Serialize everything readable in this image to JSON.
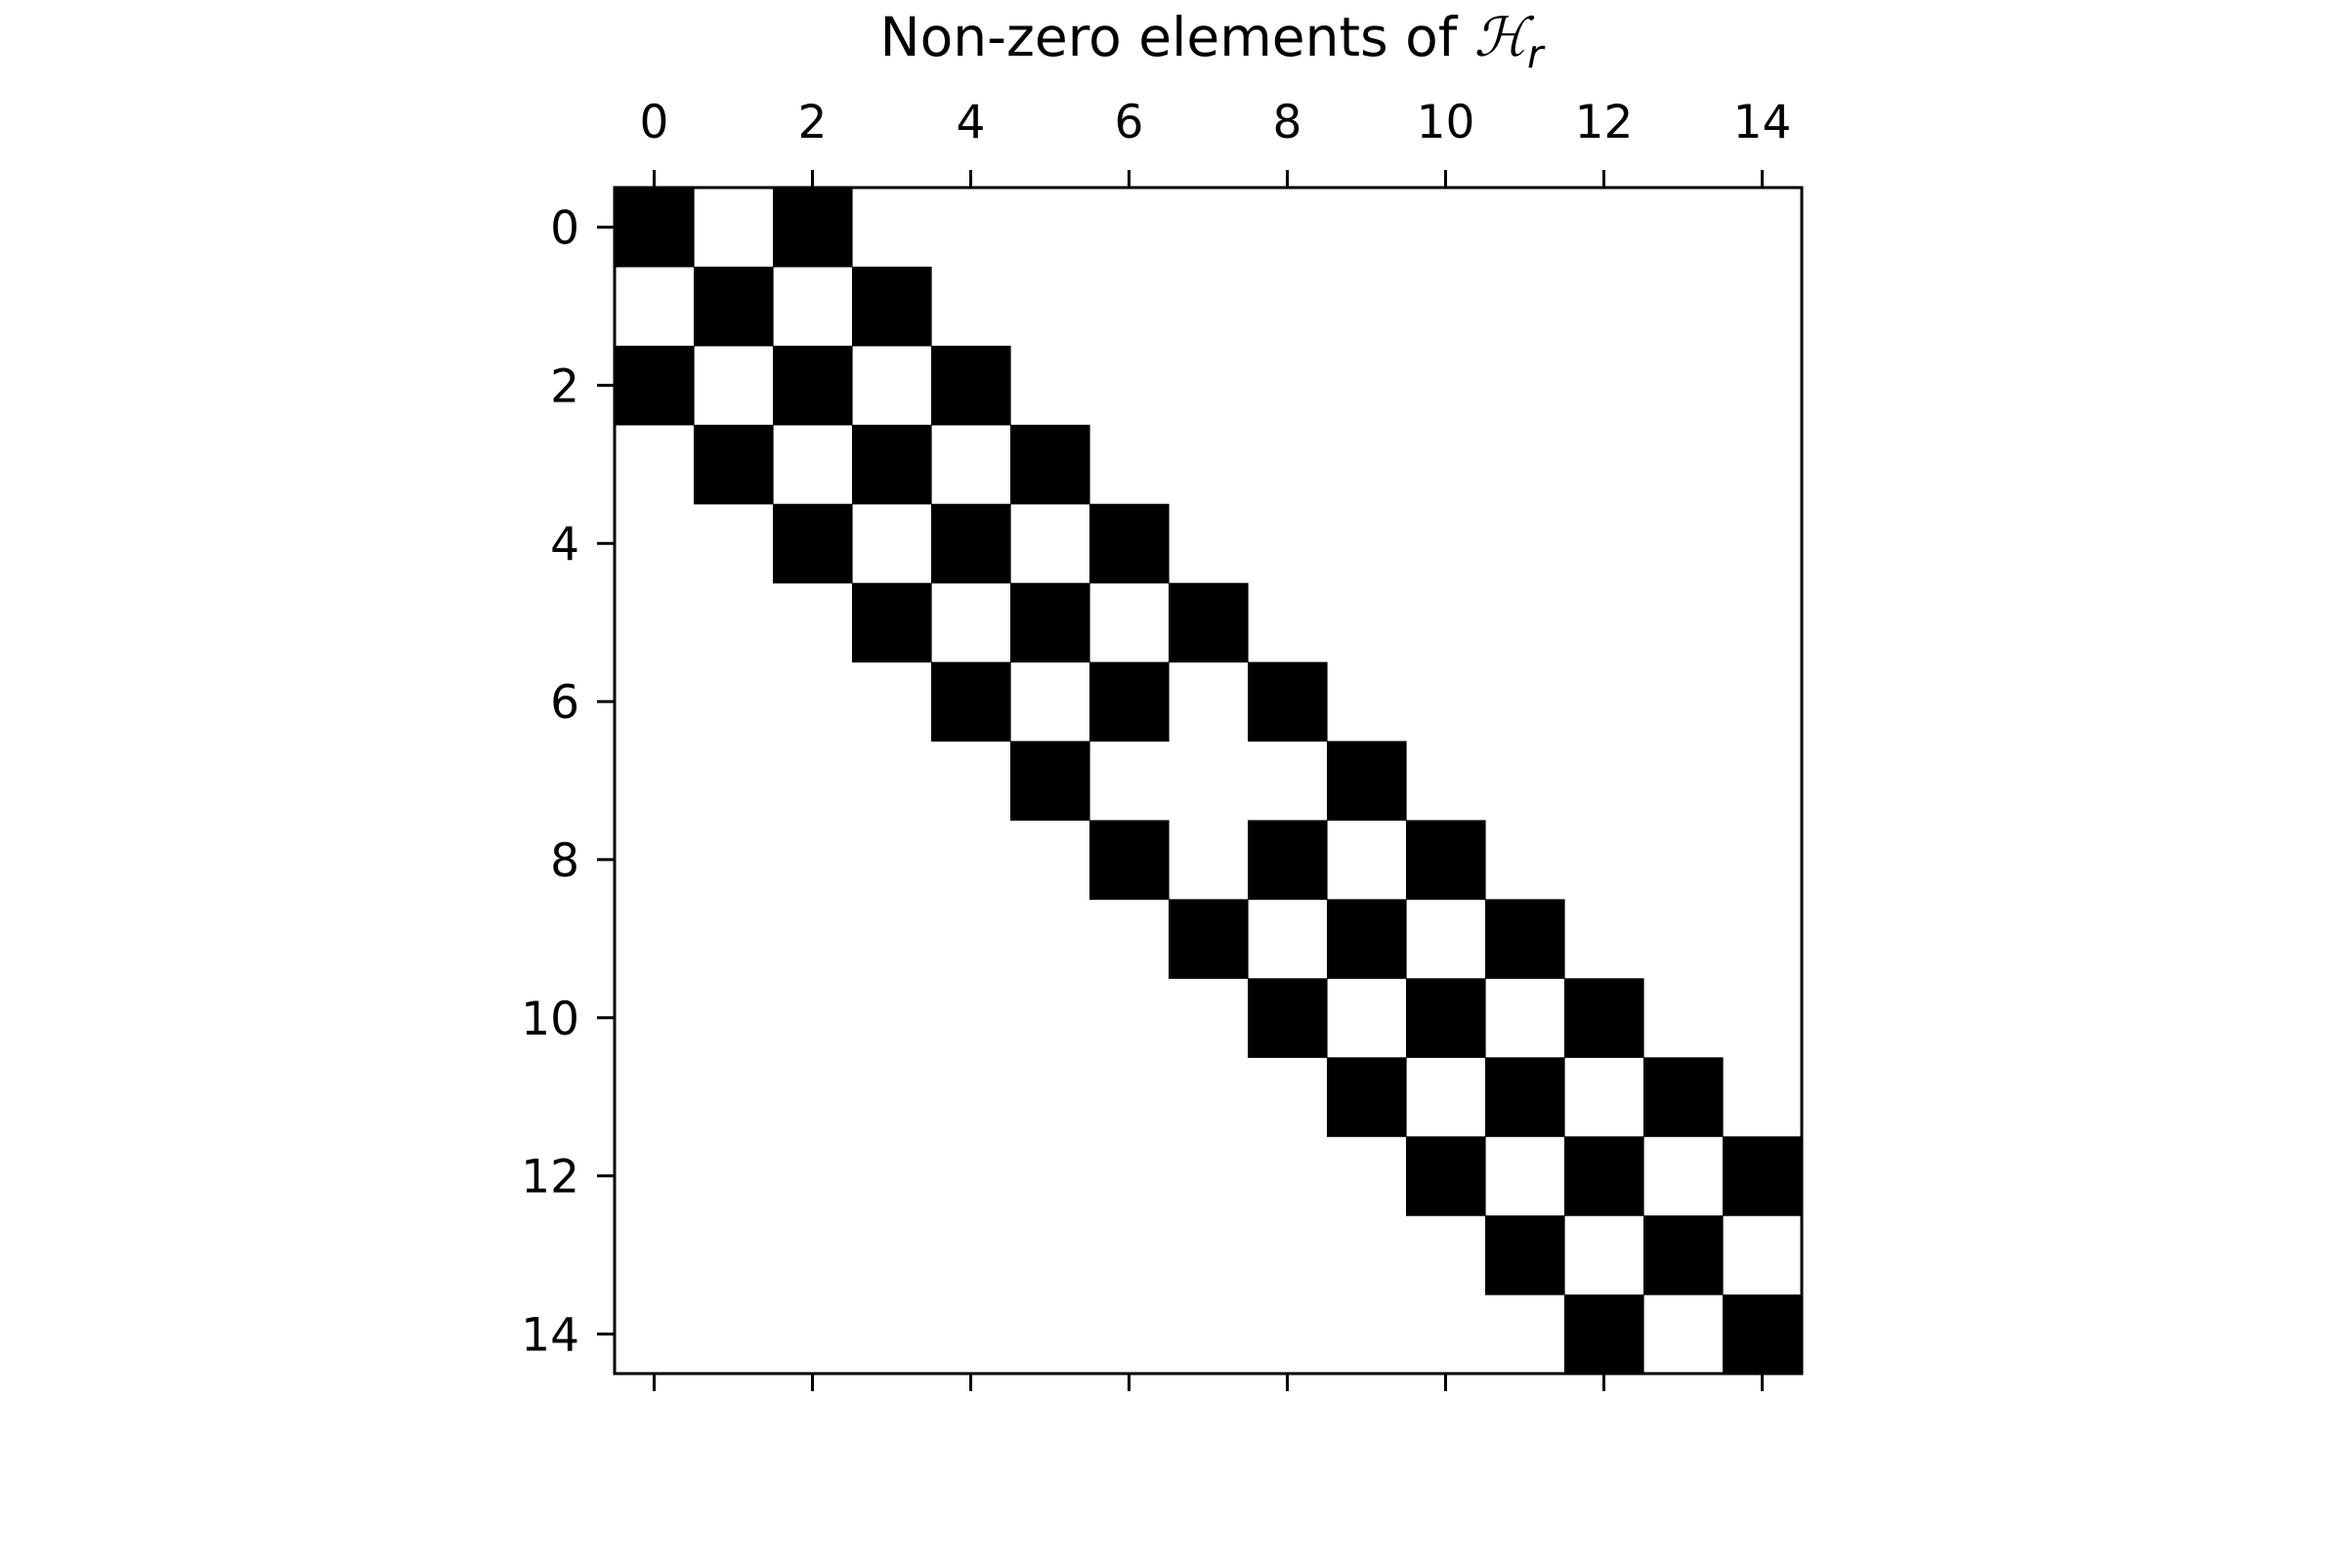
{
  "chart_data": {
    "type": "heatmap",
    "title": {
      "prefix": "Non-zero elements of ",
      "symbol": "ℋ",
      "subscript": "r"
    },
    "rows": 15,
    "cols": 15,
    "xticks": [
      "0",
      "2",
      "4",
      "6",
      "8",
      "10",
      "12",
      "14"
    ],
    "yticks": [
      "0",
      "2",
      "4",
      "6",
      "8",
      "10",
      "12",
      "14"
    ],
    "xtick_values": [
      0,
      2,
      4,
      6,
      8,
      10,
      12,
      14
    ],
    "ytick_values": [
      0,
      2,
      4,
      6,
      8,
      10,
      12,
      14
    ],
    "xaxis_position": "top",
    "grid": false,
    "colors": {
      "nonzero": "#000000",
      "zero": "#ffffff"
    },
    "nonzero": [
      [
        0,
        0
      ],
      [
        0,
        2
      ],
      [
        1,
        1
      ],
      [
        1,
        3
      ],
      [
        2,
        0
      ],
      [
        2,
        2
      ],
      [
        2,
        4
      ],
      [
        3,
        1
      ],
      [
        3,
        3
      ],
      [
        3,
        5
      ],
      [
        4,
        2
      ],
      [
        4,
        4
      ],
      [
        4,
        6
      ],
      [
        5,
        3
      ],
      [
        5,
        5
      ],
      [
        5,
        7
      ],
      [
        6,
        4
      ],
      [
        6,
        6
      ],
      [
        6,
        8
      ],
      [
        7,
        5
      ],
      [
        7,
        9
      ],
      [
        8,
        6
      ],
      [
        8,
        8
      ],
      [
        8,
        10
      ],
      [
        9,
        7
      ],
      [
        9,
        9
      ],
      [
        9,
        11
      ],
      [
        10,
        8
      ],
      [
        10,
        10
      ],
      [
        10,
        12
      ],
      [
        11,
        9
      ],
      [
        11,
        11
      ],
      [
        11,
        13
      ],
      [
        12,
        10
      ],
      [
        12,
        12
      ],
      [
        12,
        14
      ],
      [
        13,
        11
      ],
      [
        13,
        13
      ],
      [
        14,
        12
      ],
      [
        14,
        14
      ]
    ]
  }
}
